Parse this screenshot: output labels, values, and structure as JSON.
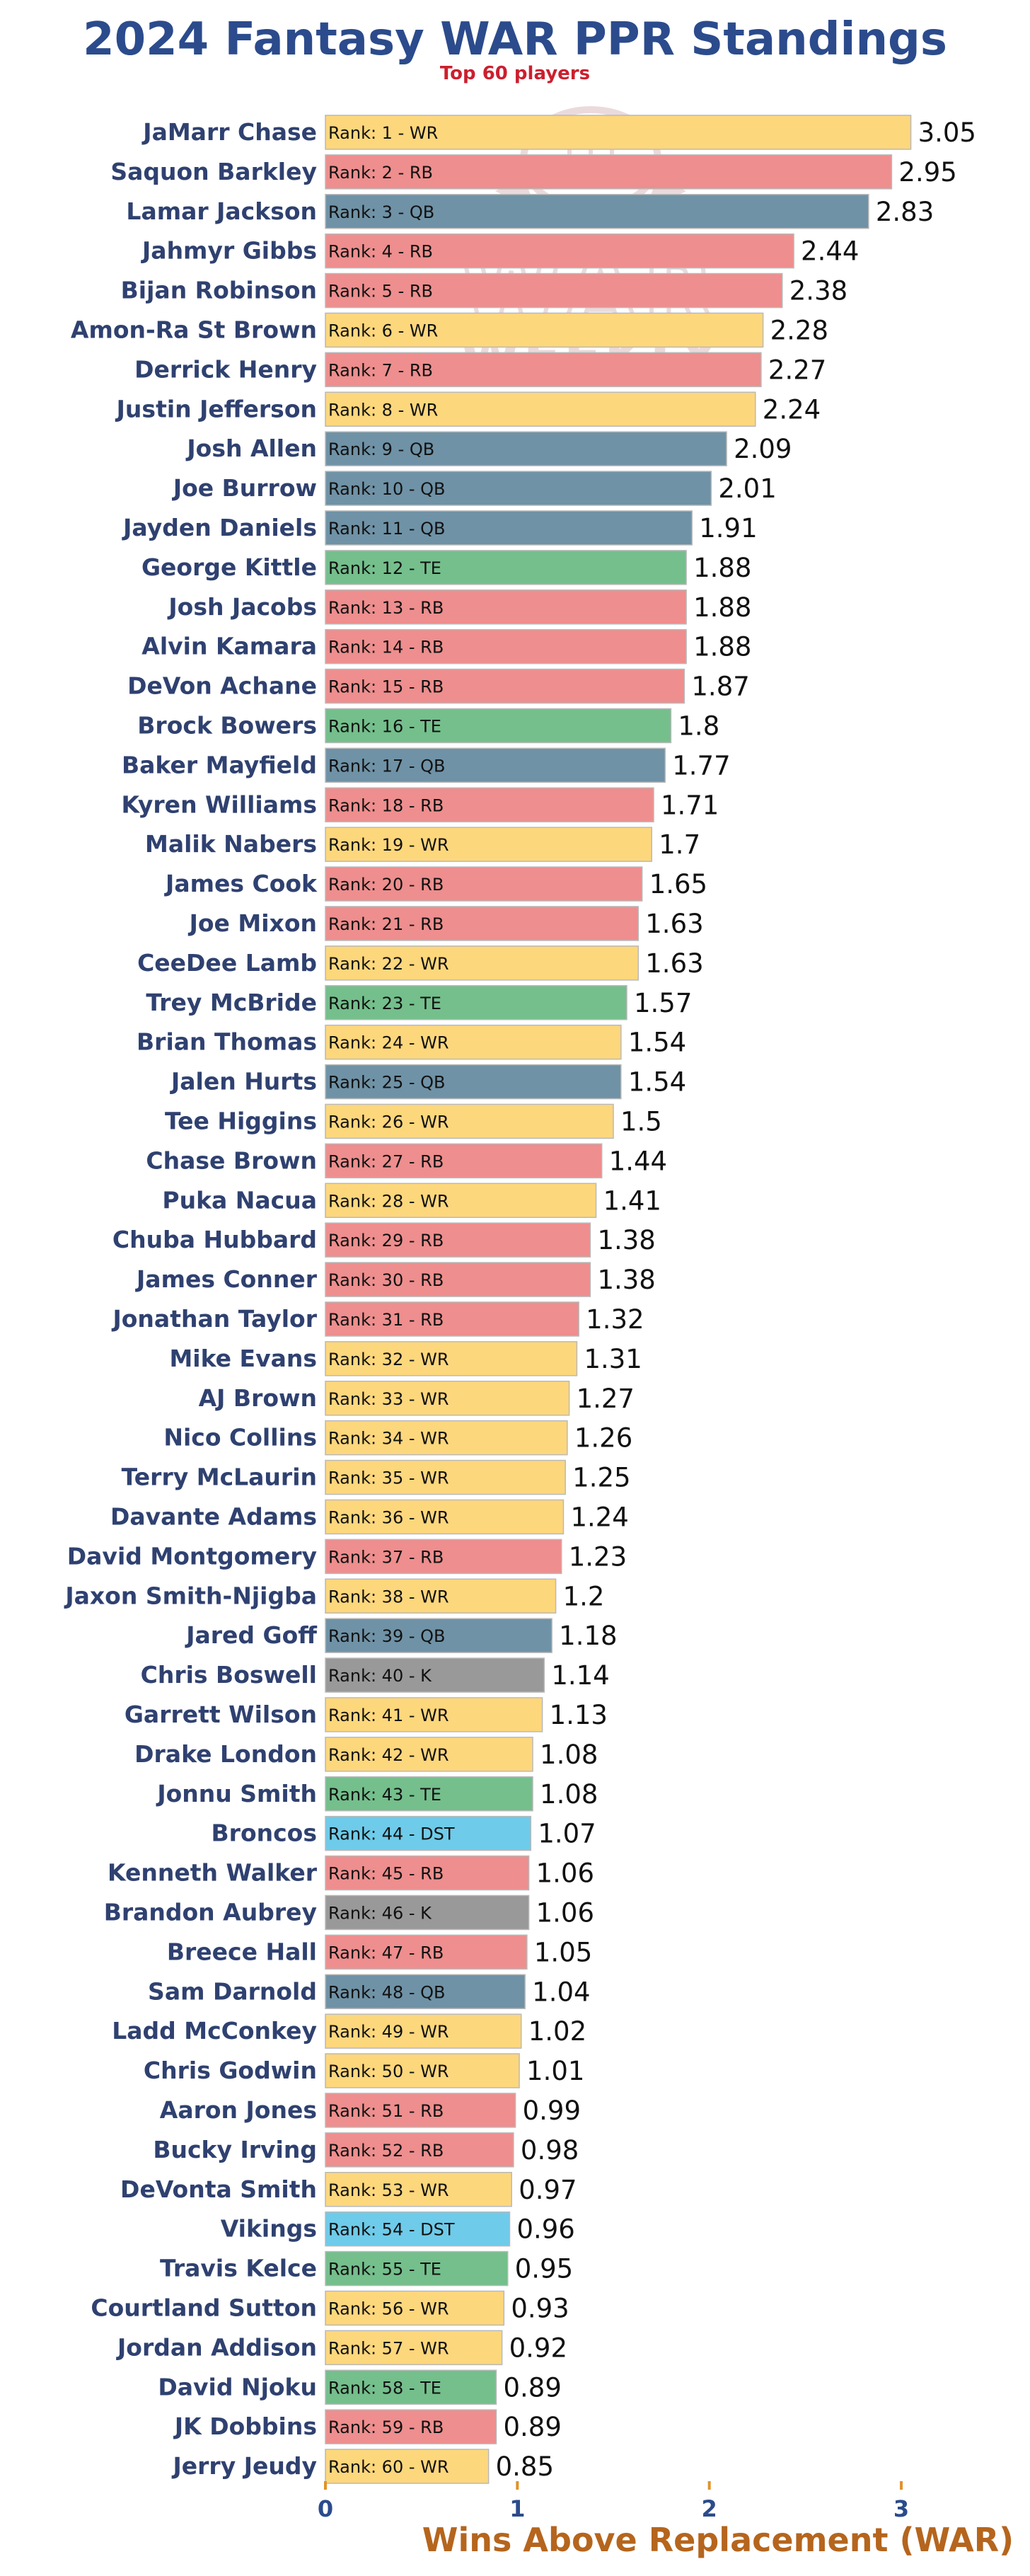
{
  "chart_data": {
    "type": "bar",
    "orientation": "horizontal",
    "title": "2024 Fantasy WAR PPR Standings",
    "subtitle": "Top 60 players",
    "xlabel": "Wins Above Replacement (WAR)",
    "xlim": [
      0,
      3.2
    ],
    "xticks": [
      0,
      1,
      2,
      3
    ],
    "grid": false,
    "watermark": {
      "line1": "WAR",
      "line2": "WEEKLY"
    },
    "colors": {
      "title": "#2b4b8c",
      "subtitle": "#cc1f2e",
      "xlabel": "#b5651d",
      "player_label": "#2f4170",
      "tick": "#2b4b8c",
      "axis_tick_mark": "#e0932c",
      "WR": "#fdd77c",
      "RB": "#ee8e8e",
      "QB": "#6f92a6",
      "TE": "#74bf8c",
      "K": "#999999",
      "DST": "#6ecbe9"
    },
    "players": [
      {
        "name": "JaMarr Chase",
        "label": "Rank: 1 - WR",
        "pos": "WR",
        "value": 3.05
      },
      {
        "name": "Saquon Barkley",
        "label": "Rank: 2 - RB",
        "pos": "RB",
        "value": 2.95
      },
      {
        "name": "Lamar Jackson",
        "label": "Rank: 3 - QB",
        "pos": "QB",
        "value": 2.83
      },
      {
        "name": "Jahmyr Gibbs",
        "label": "Rank: 4 - RB",
        "pos": "RB",
        "value": 2.44
      },
      {
        "name": "Bijan Robinson",
        "label": "Rank: 5 - RB",
        "pos": "RB",
        "value": 2.38
      },
      {
        "name": "Amon-Ra St Brown",
        "label": "Rank: 6 - WR",
        "pos": "WR",
        "value": 2.28
      },
      {
        "name": "Derrick Henry",
        "label": "Rank: 7 - RB",
        "pos": "RB",
        "value": 2.27
      },
      {
        "name": "Justin Jefferson",
        "label": "Rank: 8 - WR",
        "pos": "WR",
        "value": 2.24
      },
      {
        "name": "Josh Allen",
        "label": "Rank: 9 - QB",
        "pos": "QB",
        "value": 2.09
      },
      {
        "name": "Joe Burrow",
        "label": "Rank: 10 - QB",
        "pos": "QB",
        "value": 2.01
      },
      {
        "name": "Jayden Daniels",
        "label": "Rank: 11 - QB",
        "pos": "QB",
        "value": 1.91
      },
      {
        "name": "George Kittle",
        "label": "Rank: 12 - TE",
        "pos": "TE",
        "value": 1.88
      },
      {
        "name": "Josh Jacobs",
        "label": "Rank: 13 - RB",
        "pos": "RB",
        "value": 1.88
      },
      {
        "name": "Alvin Kamara",
        "label": "Rank: 14 - RB",
        "pos": "RB",
        "value": 1.88
      },
      {
        "name": "DeVon Achane",
        "label": "Rank: 15 - RB",
        "pos": "RB",
        "value": 1.87
      },
      {
        "name": "Brock Bowers",
        "label": "Rank: 16 - TE",
        "pos": "TE",
        "value": 1.8
      },
      {
        "name": "Baker Mayfield",
        "label": "Rank: 17 - QB",
        "pos": "QB",
        "value": 1.77
      },
      {
        "name": "Kyren Williams",
        "label": "Rank: 18 - RB",
        "pos": "RB",
        "value": 1.71
      },
      {
        "name": "Malik Nabers",
        "label": "Rank: 19 - WR",
        "pos": "WR",
        "value": 1.7
      },
      {
        "name": "James Cook",
        "label": "Rank: 20 - RB",
        "pos": "RB",
        "value": 1.65
      },
      {
        "name": "Joe Mixon",
        "label": "Rank: 21 - RB",
        "pos": "RB",
        "value": 1.63
      },
      {
        "name": "CeeDee Lamb",
        "label": "Rank: 22 - WR",
        "pos": "WR",
        "value": 1.63
      },
      {
        "name": "Trey McBride",
        "label": "Rank: 23 - TE",
        "pos": "TE",
        "value": 1.57
      },
      {
        "name": "Brian Thomas",
        "label": "Rank: 24 - WR",
        "pos": "WR",
        "value": 1.54
      },
      {
        "name": "Jalen Hurts",
        "label": "Rank: 25 - QB",
        "pos": "QB",
        "value": 1.54
      },
      {
        "name": "Tee Higgins",
        "label": "Rank: 26 - WR",
        "pos": "WR",
        "value": 1.5
      },
      {
        "name": "Chase Brown",
        "label": "Rank: 27 - RB",
        "pos": "RB",
        "value": 1.44
      },
      {
        "name": "Puka Nacua",
        "label": "Rank: 28 - WR",
        "pos": "WR",
        "value": 1.41
      },
      {
        "name": "Chuba Hubbard",
        "label": "Rank: 29 - RB",
        "pos": "RB",
        "value": 1.38
      },
      {
        "name": "James Conner",
        "label": "Rank: 30 - RB",
        "pos": "RB",
        "value": 1.38
      },
      {
        "name": "Jonathan Taylor",
        "label": "Rank: 31 - RB",
        "pos": "RB",
        "value": 1.32
      },
      {
        "name": "Mike Evans",
        "label": "Rank: 32 - WR",
        "pos": "WR",
        "value": 1.31
      },
      {
        "name": "AJ Brown",
        "label": "Rank: 33 - WR",
        "pos": "WR",
        "value": 1.27
      },
      {
        "name": "Nico Collins",
        "label": "Rank: 34 - WR",
        "pos": "WR",
        "value": 1.26
      },
      {
        "name": "Terry McLaurin",
        "label": "Rank: 35 - WR",
        "pos": "WR",
        "value": 1.25
      },
      {
        "name": "Davante Adams",
        "label": "Rank: 36 - WR",
        "pos": "WR",
        "value": 1.24
      },
      {
        "name": "David Montgomery",
        "label": "Rank: 37 - RB",
        "pos": "RB",
        "value": 1.23
      },
      {
        "name": "Jaxon Smith-Njigba",
        "label": "Rank: 38 - WR",
        "pos": "WR",
        "value": 1.2
      },
      {
        "name": "Jared Goff",
        "label": "Rank: 39 - QB",
        "pos": "QB",
        "value": 1.18
      },
      {
        "name": "Chris Boswell",
        "label": "Rank: 40 - K",
        "pos": "K",
        "value": 1.14
      },
      {
        "name": "Garrett Wilson",
        "label": "Rank: 41 - WR",
        "pos": "WR",
        "value": 1.13
      },
      {
        "name": "Drake London",
        "label": "Rank: 42 - WR",
        "pos": "WR",
        "value": 1.08
      },
      {
        "name": "Jonnu Smith",
        "label": "Rank: 43 - TE",
        "pos": "TE",
        "value": 1.08
      },
      {
        "name": "Broncos",
        "label": "Rank: 44 - DST",
        "pos": "DST",
        "value": 1.07
      },
      {
        "name": "Kenneth Walker",
        "label": "Rank: 45 - RB",
        "pos": "RB",
        "value": 1.06
      },
      {
        "name": "Brandon Aubrey",
        "label": "Rank: 46 - K",
        "pos": "K",
        "value": 1.06
      },
      {
        "name": "Breece Hall",
        "label": "Rank: 47 - RB",
        "pos": "RB",
        "value": 1.05
      },
      {
        "name": "Sam Darnold",
        "label": "Rank: 48 - QB",
        "pos": "QB",
        "value": 1.04
      },
      {
        "name": "Ladd McConkey",
        "label": "Rank: 49 - WR",
        "pos": "WR",
        "value": 1.02
      },
      {
        "name": "Chris Godwin",
        "label": "Rank: 50 - WR",
        "pos": "WR",
        "value": 1.01
      },
      {
        "name": "Aaron Jones",
        "label": "Rank: 51 - RB",
        "pos": "RB",
        "value": 0.99
      },
      {
        "name": "Bucky Irving",
        "label": "Rank: 52 - RB",
        "pos": "RB",
        "value": 0.98
      },
      {
        "name": "DeVonta Smith",
        "label": "Rank: 53 - WR",
        "pos": "WR",
        "value": 0.97
      },
      {
        "name": "Vikings",
        "label": "Rank: 54 - DST",
        "pos": "DST",
        "value": 0.96
      },
      {
        "name": "Travis Kelce",
        "label": "Rank: 55 - TE",
        "pos": "TE",
        "value": 0.95
      },
      {
        "name": "Courtland Sutton",
        "label": "Rank: 56 - WR",
        "pos": "WR",
        "value": 0.93
      },
      {
        "name": "Jordan Addison",
        "label": "Rank: 57 - WR",
        "pos": "WR",
        "value": 0.92
      },
      {
        "name": "David Njoku",
        "label": "Rank: 58 - TE",
        "pos": "TE",
        "value": 0.89
      },
      {
        "name": "JK Dobbins",
        "label": "Rank: 59 - RB",
        "pos": "RB",
        "value": 0.89
      },
      {
        "name": "Jerry Jeudy",
        "label": "Rank: 60 - WR",
        "pos": "WR",
        "value": 0.85
      }
    ]
  }
}
